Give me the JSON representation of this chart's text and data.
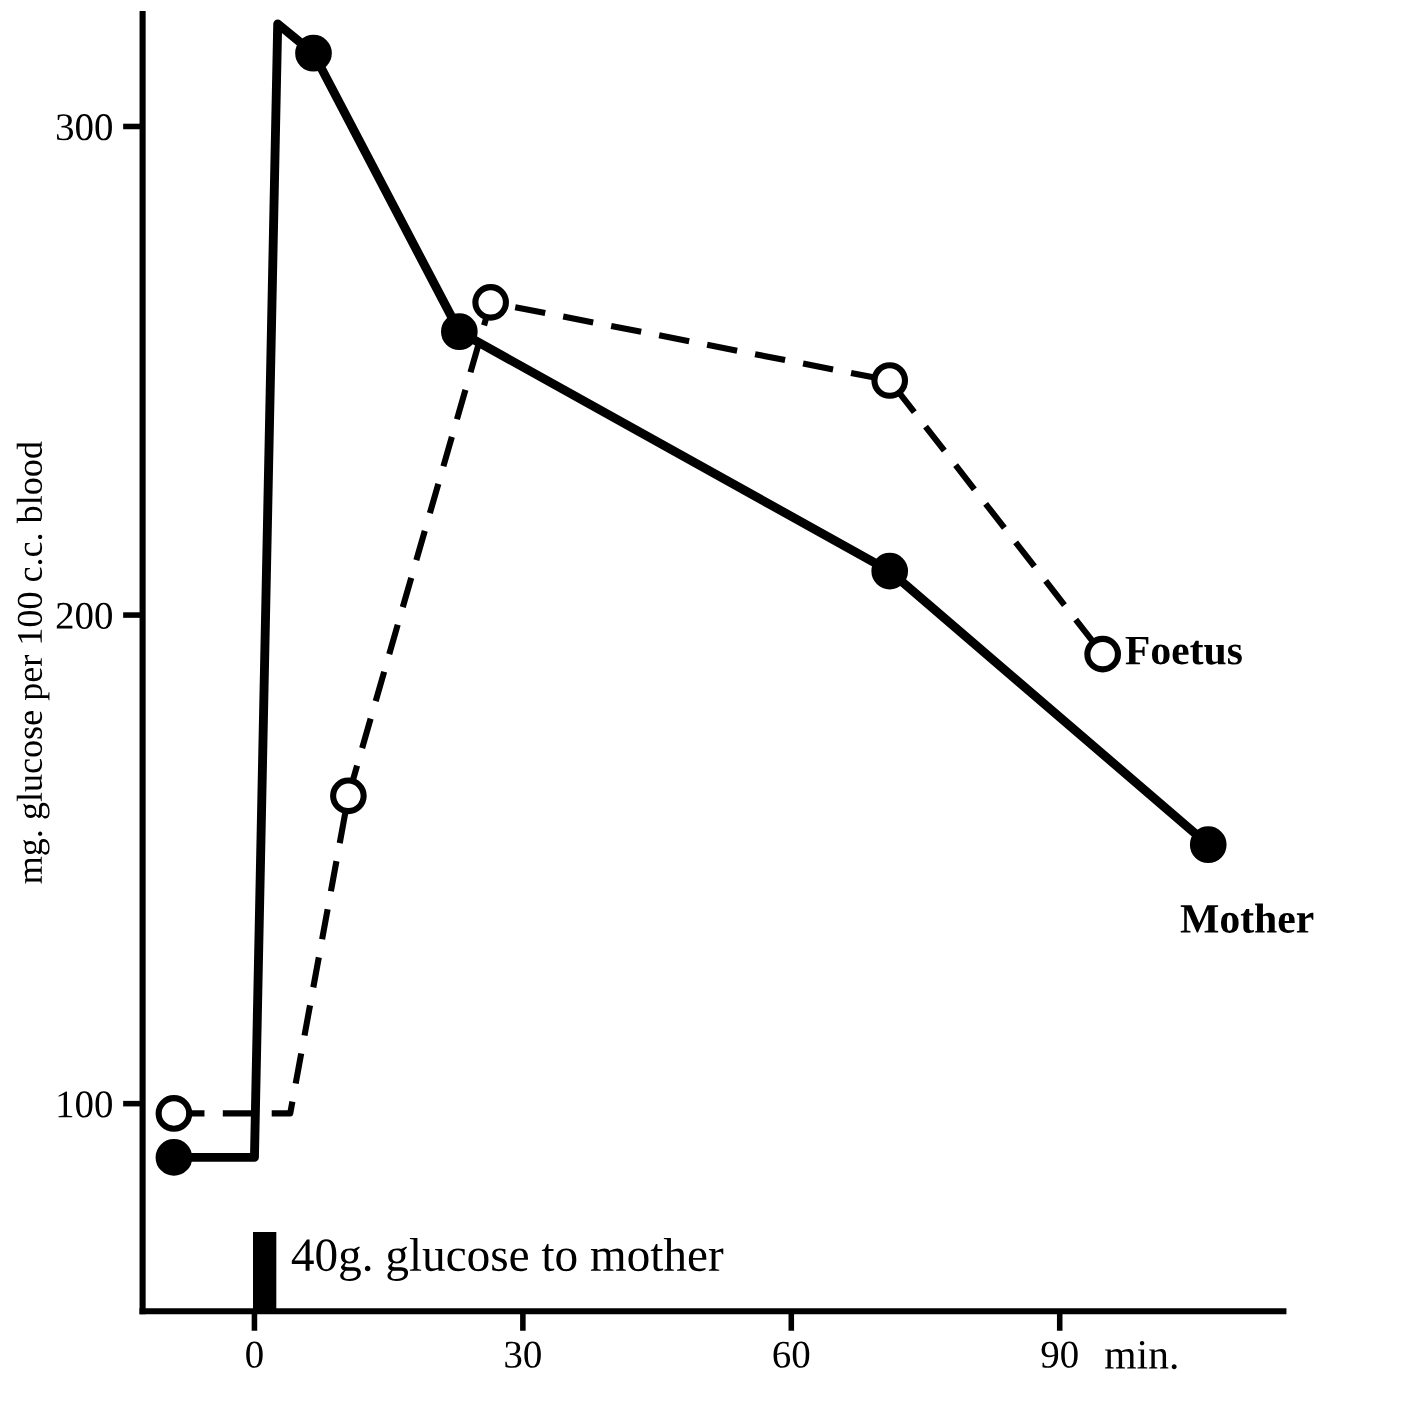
{
  "chart_data": {
    "type": "line",
    "xlabel": "min.",
    "ylabel": "mg. glucose per 100 c.c. blood",
    "xlim": [
      -12.5,
      115
    ],
    "xticks": [
      0,
      30,
      60,
      90
    ],
    "ylim": [
      57.5,
      323
    ],
    "yticks": [
      100,
      200,
      300
    ],
    "grid": false,
    "legend": false,
    "series": [
      {
        "name": "Mother",
        "color": "#000000",
        "line_style": "solid",
        "marker": "none",
        "x": [
          -9,
          0,
          2.6,
          6.6,
          22.9,
          71,
          106.6
        ],
        "values": [
          89,
          89,
          321,
          315,
          258,
          209,
          153
        ]
      },
      {
        "type": "scatter",
        "color": "#000000",
        "marker": "circle",
        "x": [
          -9,
          6.6,
          22.9,
          71,
          106.6
        ],
        "values": [
          89,
          315,
          258,
          209,
          153
        ]
      },
      {
        "name": "Foetus",
        "color": "#000000",
        "line_style": "dashed",
        "marker": "none",
        "x": [
          -9,
          4,
          10.5,
          26.4,
          71,
          94.8
        ],
        "values": [
          98,
          98,
          163,
          264,
          248,
          192
        ]
      },
      {
        "type": "scatter",
        "color": "#000000",
        "marker": "circle",
        "x": [
          -9,
          10.5,
          26.4,
          71,
          94.8
        ],
        "values": [
          98,
          163,
          264,
          248,
          192
        ]
      }
    ],
    "annotations": [
      "40g. glucose to mother"
    ]
  }
}
